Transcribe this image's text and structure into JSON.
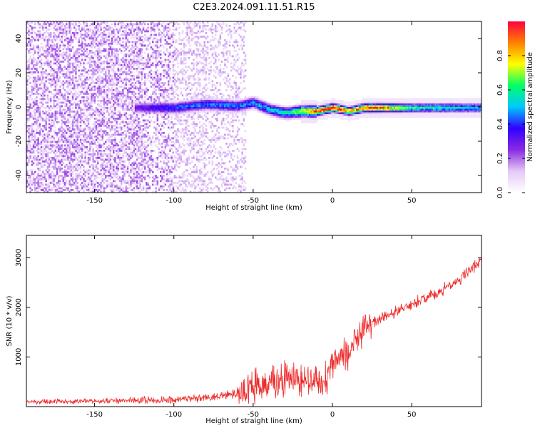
{
  "title": "C2E3.2024.091.11.51.R15",
  "chart_data": [
    {
      "type": "heatmap",
      "xlabel": "Height of straight line (km)",
      "ylabel": "Frequency (Hz)",
      "xlim": [
        -193,
        94
      ],
      "ylim": [
        -50,
        50
      ],
      "xticks": [
        -150,
        -100,
        -50,
        0,
        50
      ],
      "yticks": [
        -40,
        -20,
        0,
        20,
        40
      ],
      "colorbar": {
        "label": "Normalized spectral amplitude",
        "range": [
          0,
          1
        ],
        "ticks": [
          0.0,
          0.2,
          0.4,
          0.6,
          0.8
        ],
        "colormap": [
          "#ffffff",
          "#e4c9f7",
          "#8a2be2",
          "#3300ff",
          "#00c8ff",
          "#00ff66",
          "#ffff00",
          "#ff8000",
          "#ff0040"
        ]
      },
      "ridge": {
        "description": "strong narrow signal band centred near 0 Hz",
        "x_start": -125,
        "x_end": 94,
        "center_freq": [
          [
            -125,
            0
          ],
          [
            -100,
            0
          ],
          [
            -80,
            2
          ],
          [
            -60,
            1
          ],
          [
            -50,
            3
          ],
          [
            -40,
            -1
          ],
          [
            -30,
            -3
          ],
          [
            -20,
            -2
          ],
          [
            -10,
            -2
          ],
          [
            0,
            0
          ],
          [
            10,
            -2
          ],
          [
            20,
            0
          ],
          [
            30,
            0
          ],
          [
            50,
            0
          ],
          [
            70,
            0
          ],
          [
            94,
            0
          ]
        ],
        "peak_amplitude": [
          [
            -125,
            0.3
          ],
          [
            -105,
            0.4
          ],
          [
            -85,
            0.45
          ],
          [
            -60,
            0.45
          ],
          [
            -45,
            0.5
          ],
          [
            -30,
            0.55
          ],
          [
            -10,
            0.95
          ],
          [
            0,
            1.0
          ],
          [
            10,
            0.8
          ],
          [
            25,
            1.0
          ],
          [
            50,
            0.6
          ],
          [
            80,
            0.55
          ],
          [
            94,
            0.5
          ]
        ]
      },
      "noise_extent_x": [
        -193,
        -55
      ]
    },
    {
      "type": "line",
      "xlabel": "Height of straight line (km)",
      "ylabel": "SNR (10 * v/v)",
      "xlim": [
        -193,
        94
      ],
      "ylim": [
        0,
        3450
      ],
      "xticks": [
        -150,
        -100,
        -50,
        0,
        50
      ],
      "yticks": [
        1000,
        2000,
        3000
      ],
      "color": "#ef2b2b",
      "envelope": {
        "x": [
          -193,
          -150,
          -120,
          -100,
          -80,
          -60,
          -55,
          -45,
          -30,
          -20,
          -10,
          -5,
          0,
          10,
          20,
          40,
          60,
          80,
          88,
          94
        ],
        "y": [
          100,
          110,
          130,
          140,
          180,
          260,
          350,
          450,
          550,
          600,
          500,
          450,
          850,
          1100,
          1600,
          1900,
          2200,
          2550,
          2800,
          2950
        ]
      }
    }
  ]
}
